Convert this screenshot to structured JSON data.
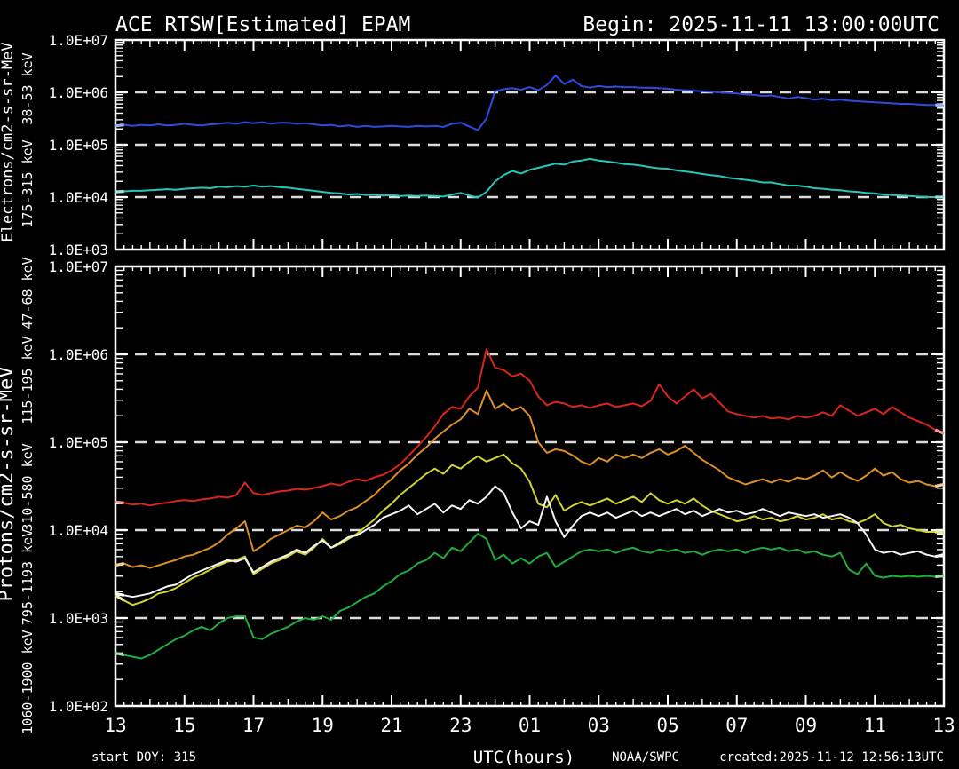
{
  "header": {
    "title": "ACE RTSW[Estimated] EPAM",
    "begin_label": "Begin: 2025-11-11 13:00:00UTC"
  },
  "footer": {
    "start_doy": "start DOY: 315",
    "xaxis_title": "UTC(hours)",
    "agency": "NOAA/SWPC",
    "created": "created:2025-11-12 12:56:13UTC"
  },
  "colors": {
    "background": "#000000",
    "frame": "#ffffff",
    "gridline": "#dcdcdc",
    "text": "#ffffff"
  },
  "chart_data": [
    {
      "type": "line",
      "panel": "electrons",
      "axis_label": "Electrons/cm2-s-sr-MeV",
      "y_scale": "log",
      "ylim": [
        1000,
        10000000
      ],
      "y_tick_labels": [
        "1.0E+07",
        "1.0E+06",
        "1.0E+05",
        "1.0E+04",
        "1.0E+03"
      ],
      "gridlines_log10": [
        6,
        5,
        4
      ],
      "t0": 0,
      "dt": 0.25,
      "hours_span": 24,
      "x_start_time": "2025-11-11 13:00UTC",
      "series": [
        {
          "name": "38-53 keV",
          "color": "#2e4bdf",
          "log10_flux": [
            5.36,
            5.38,
            5.36,
            5.38,
            5.37,
            5.39,
            5.37,
            5.38,
            5.4,
            5.38,
            5.37,
            5.39,
            5.4,
            5.42,
            5.4,
            5.43,
            5.41,
            5.43,
            5.4,
            5.42,
            5.42,
            5.4,
            5.41,
            5.39,
            5.37,
            5.38,
            5.35,
            5.37,
            5.34,
            5.36,
            5.34,
            5.35,
            5.36,
            5.35,
            5.34,
            5.36,
            5.35,
            5.36,
            5.34,
            5.4,
            5.42,
            5.35,
            5.28,
            5.5,
            6.02,
            6.06,
            6.08,
            6.05,
            6.1,
            6.04,
            6.14,
            6.32,
            6.16,
            6.24,
            6.12,
            6.09,
            6.12,
            6.1,
            6.11,
            6.1,
            6.1,
            6.09,
            6.09,
            6.08,
            6.07,
            6.05,
            6.04,
            6.03,
            6.02,
            6.01,
            6.0,
            5.99,
            5.98,
            5.96,
            5.95,
            5.93,
            5.94,
            5.91,
            5.88,
            5.91,
            5.89,
            5.86,
            5.88,
            5.85,
            5.86,
            5.84,
            5.83,
            5.82,
            5.81,
            5.8,
            5.79,
            5.78,
            5.78,
            5.77,
            5.76,
            5.76,
            5.75
          ]
        },
        {
          "name": "175-315 keV",
          "color": "#25c8b8",
          "log10_flux": [
            4.1,
            4.11,
            4.12,
            4.12,
            4.13,
            4.14,
            4.15,
            4.14,
            4.16,
            4.17,
            4.18,
            4.17,
            4.2,
            4.19,
            4.21,
            4.2,
            4.22,
            4.2,
            4.21,
            4.19,
            4.18,
            4.16,
            4.14,
            4.12,
            4.1,
            4.08,
            4.07,
            4.05,
            4.06,
            4.04,
            4.05,
            4.03,
            4.04,
            4.02,
            4.03,
            4.02,
            4.03,
            4.02,
            4.01,
            4.05,
            4.08,
            4.03,
            3.99,
            4.1,
            4.3,
            4.42,
            4.5,
            4.45,
            4.52,
            4.56,
            4.6,
            4.64,
            4.62,
            4.68,
            4.7,
            4.73,
            4.7,
            4.68,
            4.66,
            4.63,
            4.62,
            4.6,
            4.57,
            4.55,
            4.54,
            4.51,
            4.49,
            4.47,
            4.44,
            4.42,
            4.4,
            4.37,
            4.35,
            4.33,
            4.31,
            4.28,
            4.28,
            4.25,
            4.22,
            4.22,
            4.2,
            4.17,
            4.16,
            4.14,
            4.13,
            4.11,
            4.1,
            4.08,
            4.07,
            4.05,
            4.04,
            4.03,
            4.02,
            4.01,
            4.0,
            4.0,
            4.0
          ]
        }
      ]
    },
    {
      "type": "line",
      "panel": "protons",
      "axis_label": "Protons/cm2-s-sr-MeV",
      "xlabel": "UTC(hours)",
      "y_scale": "log",
      "ylim": [
        100,
        10000000
      ],
      "y_tick_labels": [
        "1.0E+07",
        "1.0E+06",
        "1.0E+05",
        "1.0E+04",
        "1.0E+03",
        "1.0E+02"
      ],
      "x_tick_labels": [
        "13",
        "15",
        "17",
        "19",
        "21",
        "23",
        "01",
        "03",
        "05",
        "07",
        "09",
        "11",
        "13"
      ],
      "gridlines_log10": [
        6,
        5,
        4,
        3
      ],
      "t0": 0,
      "dt": 0.25,
      "hours_span": 24,
      "series": [
        {
          "name": "47-68 keV",
          "color": "#da251c",
          "log10_flux": [
            4.32,
            4.31,
            4.29,
            4.3,
            4.28,
            4.3,
            4.31,
            4.33,
            4.34,
            4.33,
            4.35,
            4.36,
            4.38,
            4.37,
            4.4,
            4.54,
            4.42,
            4.4,
            4.42,
            4.44,
            4.45,
            4.47,
            4.46,
            4.48,
            4.5,
            4.53,
            4.51,
            4.55,
            4.58,
            4.56,
            4.6,
            4.63,
            4.68,
            4.75,
            4.85,
            4.95,
            5.06,
            5.18,
            5.32,
            5.4,
            5.38,
            5.52,
            5.62,
            6.06,
            5.85,
            5.82,
            5.75,
            5.78,
            5.7,
            5.52,
            5.42,
            5.46,
            5.44,
            5.4,
            5.42,
            5.39,
            5.42,
            5.44,
            5.4,
            5.42,
            5.44,
            5.41,
            5.47,
            5.66,
            5.52,
            5.44,
            5.52,
            5.6,
            5.5,
            5.55,
            5.45,
            5.35,
            5.32,
            5.3,
            5.28,
            5.3,
            5.27,
            5.28,
            5.26,
            5.3,
            5.28,
            5.3,
            5.34,
            5.3,
            5.42,
            5.36,
            5.3,
            5.34,
            5.38,
            5.32,
            5.4,
            5.34,
            5.28,
            5.24,
            5.2,
            5.14,
            5.1
          ]
        },
        {
          "name": "115-195 keV",
          "color": "#dd8f27",
          "log10_flux": [
            3.6,
            3.62,
            3.58,
            3.6,
            3.57,
            3.6,
            3.63,
            3.66,
            3.7,
            3.72,
            3.76,
            3.8,
            3.86,
            3.95,
            4.02,
            4.1,
            3.76,
            3.82,
            3.9,
            3.95,
            4.0,
            4.05,
            4.03,
            4.1,
            4.2,
            4.12,
            4.16,
            4.22,
            4.26,
            4.33,
            4.4,
            4.5,
            4.58,
            4.68,
            4.76,
            4.86,
            4.94,
            5.04,
            5.12,
            5.2,
            5.26,
            5.38,
            5.32,
            5.59,
            5.38,
            5.44,
            5.36,
            5.4,
            5.3,
            5.0,
            4.88,
            4.92,
            4.9,
            4.85,
            4.78,
            4.74,
            4.82,
            4.78,
            4.86,
            4.82,
            4.86,
            4.82,
            4.88,
            4.92,
            4.86,
            4.9,
            4.96,
            4.88,
            4.8,
            4.74,
            4.68,
            4.6,
            4.56,
            4.52,
            4.55,
            4.58,
            4.54,
            4.58,
            4.55,
            4.6,
            4.58,
            4.62,
            4.68,
            4.6,
            4.66,
            4.6,
            4.56,
            4.62,
            4.7,
            4.62,
            4.66,
            4.58,
            4.54,
            4.56,
            4.52,
            4.5,
            4.52
          ]
        },
        {
          "name": "310-580 keV",
          "color": "#d3d333",
          "log10_flux": [
            3.26,
            3.2,
            3.15,
            3.18,
            3.22,
            3.28,
            3.3,
            3.34,
            3.4,
            3.46,
            3.5,
            3.55,
            3.6,
            3.64,
            3.66,
            3.7,
            3.5,
            3.56,
            3.62,
            3.66,
            3.7,
            3.76,
            3.72,
            3.8,
            3.9,
            3.8,
            3.84,
            3.9,
            3.96,
            4.04,
            4.12,
            4.22,
            4.3,
            4.4,
            4.48,
            4.56,
            4.64,
            4.7,
            4.64,
            4.74,
            4.7,
            4.78,
            4.84,
            4.78,
            4.82,
            4.86,
            4.76,
            4.7,
            4.55,
            4.3,
            4.26,
            4.4,
            4.22,
            4.28,
            4.32,
            4.28,
            4.32,
            4.36,
            4.3,
            4.34,
            4.38,
            4.32,
            4.42,
            4.34,
            4.3,
            4.34,
            4.3,
            4.36,
            4.28,
            4.22,
            4.18,
            4.14,
            4.1,
            4.12,
            4.16,
            4.12,
            4.14,
            4.1,
            4.12,
            4.16,
            4.12,
            4.14,
            4.18,
            4.12,
            4.14,
            4.1,
            4.08,
            4.12,
            4.18,
            4.08,
            4.04,
            4.06,
            4.02,
            4.0,
            3.98,
            3.98,
            3.97
          ]
        },
        {
          "name": "795-1193 keV",
          "color": "#f5f5f5",
          "log10_flux": [
            3.28,
            3.26,
            3.24,
            3.26,
            3.28,
            3.32,
            3.36,
            3.38,
            3.44,
            3.5,
            3.54,
            3.58,
            3.62,
            3.66,
            3.64,
            3.68,
            3.52,
            3.58,
            3.64,
            3.68,
            3.72,
            3.78,
            3.74,
            3.82,
            3.88,
            3.8,
            3.86,
            3.92,
            3.94,
            4.0,
            4.06,
            4.14,
            4.18,
            4.22,
            4.28,
            4.18,
            4.24,
            4.3,
            4.2,
            4.28,
            4.24,
            4.34,
            4.3,
            4.38,
            4.5,
            4.42,
            4.2,
            4.02,
            4.1,
            4.06,
            4.38,
            4.1,
            3.92,
            4.05,
            4.16,
            4.2,
            4.16,
            4.2,
            4.14,
            4.18,
            4.22,
            4.16,
            4.2,
            4.16,
            4.2,
            4.24,
            4.18,
            4.22,
            4.16,
            4.2,
            4.24,
            4.2,
            4.22,
            4.18,
            4.2,
            4.24,
            4.2,
            4.16,
            4.2,
            4.18,
            4.16,
            4.18,
            4.14,
            4.16,
            4.18,
            4.14,
            4.08,
            3.95,
            3.78,
            3.74,
            3.76,
            3.72,
            3.74,
            3.76,
            3.72,
            3.7,
            3.72
          ]
        },
        {
          "name": "1060-1900 keV",
          "color": "#1fae3d",
          "log10_flux": [
            2.6,
            2.58,
            2.56,
            2.54,
            2.58,
            2.64,
            2.7,
            2.76,
            2.8,
            2.86,
            2.9,
            2.86,
            2.94,
            3.0,
            3.02,
            3.02,
            2.78,
            2.76,
            2.82,
            2.86,
            2.9,
            2.96,
            3.0,
            2.98,
            3.02,
            2.98,
            3.08,
            3.12,
            3.18,
            3.24,
            3.28,
            3.36,
            3.42,
            3.5,
            3.54,
            3.62,
            3.66,
            3.74,
            3.68,
            3.8,
            3.76,
            3.86,
            3.96,
            3.9,
            3.66,
            3.72,
            3.62,
            3.68,
            3.62,
            3.7,
            3.74,
            3.58,
            3.64,
            3.7,
            3.76,
            3.78,
            3.76,
            3.78,
            3.74,
            3.78,
            3.8,
            3.76,
            3.74,
            3.78,
            3.76,
            3.78,
            3.74,
            3.76,
            3.72,
            3.76,
            3.78,
            3.76,
            3.78,
            3.74,
            3.78,
            3.8,
            3.78,
            3.8,
            3.76,
            3.78,
            3.74,
            3.76,
            3.72,
            3.7,
            3.74,
            3.55,
            3.5,
            3.62,
            3.48,
            3.46,
            3.48,
            3.47,
            3.48,
            3.47,
            3.48,
            3.47,
            3.48
          ]
        }
      ]
    }
  ]
}
